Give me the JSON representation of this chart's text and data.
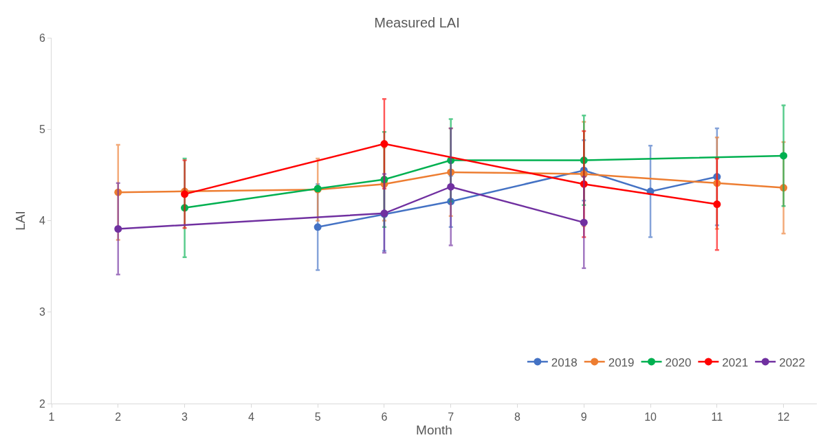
{
  "chart_data": {
    "type": "line",
    "title": "Measured LAI",
    "xlabel": "Month",
    "ylabel": "LAI",
    "xlim": [
      1,
      12.5
    ],
    "xticks": [
      1,
      2,
      3,
      4,
      5,
      6,
      7,
      8,
      9,
      10,
      11,
      12
    ],
    "ylim": [
      2,
      6
    ],
    "yticks": [
      2,
      3,
      4,
      5,
      6
    ],
    "legend": "bottom right",
    "marker": "circle",
    "series": [
      {
        "name": "2018",
        "color": "#4472c4",
        "x": [
          5,
          6,
          7,
          9,
          10,
          11
        ],
        "values": [
          3.93,
          4.07,
          4.21,
          4.55,
          4.32,
          4.48
        ],
        "errors": [
          0.47,
          0.4,
          0.28,
          0.33,
          0.5,
          0.53
        ]
      },
      {
        "name": "2019",
        "color": "#ed7d31",
        "x": [
          2,
          3,
          5,
          6,
          7,
          9,
          11,
          12
        ],
        "values": [
          4.31,
          4.32,
          4.34,
          4.4,
          4.53,
          4.51,
          4.41,
          4.36
        ],
        "errors": [
          0.52,
          null,
          0.34,
          0.4,
          0.48,
          0.57,
          0.5,
          0.5
        ]
      },
      {
        "name": "2020",
        "color": "#00b050",
        "x": [
          3,
          5,
          6,
          7,
          9,
          12
        ],
        "values": [
          4.14,
          4.35,
          4.45,
          4.66,
          4.66,
          4.71
        ],
        "errors": [
          0.54,
          null,
          0.52,
          0.45,
          0.49,
          0.55
        ]
      },
      {
        "name": "2021",
        "color": "#ff0000",
        "x": [
          3,
          6,
          9,
          11
        ],
        "values": [
          4.29,
          4.84,
          4.4,
          4.18
        ],
        "errors": [
          0.37,
          0.49,
          0.58,
          0.5
        ]
      },
      {
        "name": "2022",
        "color": "#7030a0",
        "x": [
          2,
          6,
          7,
          9
        ],
        "values": [
          3.91,
          4.08,
          4.37,
          3.98
        ],
        "errors": [
          0.5,
          0.43,
          0.64,
          0.5
        ]
      }
    ]
  }
}
